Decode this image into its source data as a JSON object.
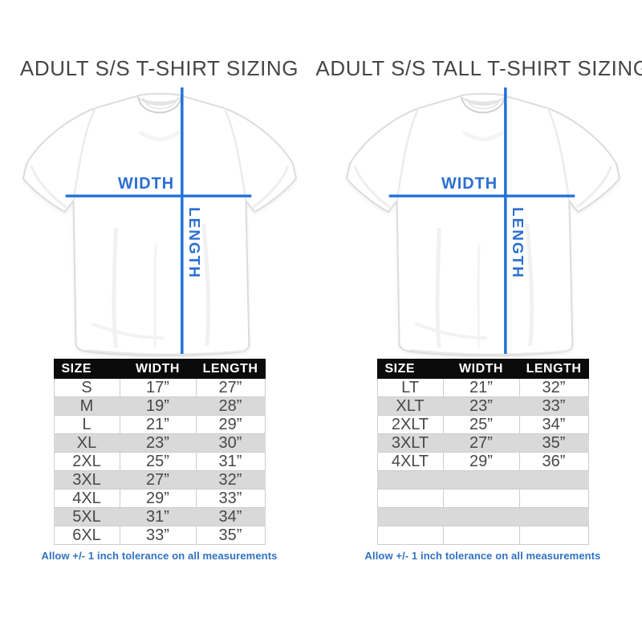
{
  "colors": {
    "accent_blue": "#2272d9",
    "footer_blue": "#2f72c3",
    "table_header_bg": "#0b0b0b",
    "table_header_text": "#ffffff",
    "row_alt_gray": "#d9d9d9",
    "cell_border": "#cdcdcd",
    "title_text": "#464646",
    "cell_text": "#48484a",
    "background": "#ffffff"
  },
  "panels": [
    {
      "title": "ADULT S/S T-SHIRT SIZING",
      "diagram": {
        "width_label": "WIDTH",
        "length_label": "LENGTH"
      },
      "table": {
        "columns": [
          "SIZE",
          "WIDTH",
          "LENGTH"
        ],
        "rows": [
          [
            "S",
            "17”",
            "27”"
          ],
          [
            "M",
            "19”",
            "28”"
          ],
          [
            "L",
            "21”",
            "29”"
          ],
          [
            "XL",
            "23”",
            "30”"
          ],
          [
            "2XL",
            "25”",
            "31”"
          ],
          [
            "3XL",
            "27”",
            "32”"
          ],
          [
            "4XL",
            "29”",
            "33”"
          ],
          [
            "5XL",
            "31”",
            "34”"
          ],
          [
            "6XL",
            "33”",
            "35”"
          ]
        ]
      },
      "tolerance_note": "Allow +/- 1 inch tolerance on all measurements"
    },
    {
      "title": "ADULT S/S TALL T-SHIRT SIZING",
      "diagram": {
        "width_label": "WIDTH",
        "length_label": "LENGTH"
      },
      "table": {
        "columns": [
          "SIZE",
          "WIDTH",
          "LENGTH"
        ],
        "rows": [
          [
            "LT",
            "21”",
            "32”"
          ],
          [
            "XLT",
            "23”",
            "33”"
          ],
          [
            "2XLT",
            "25”",
            "34”"
          ],
          [
            "3XLT",
            "27”",
            "35”"
          ],
          [
            "4XLT",
            "29”",
            "36”"
          ],
          [
            "",
            "",
            ""
          ],
          [
            "",
            "",
            ""
          ],
          [
            "",
            "",
            ""
          ],
          [
            "",
            "",
            ""
          ]
        ]
      },
      "tolerance_note": "Allow +/- 1 inch tolerance on all measurements"
    }
  ]
}
